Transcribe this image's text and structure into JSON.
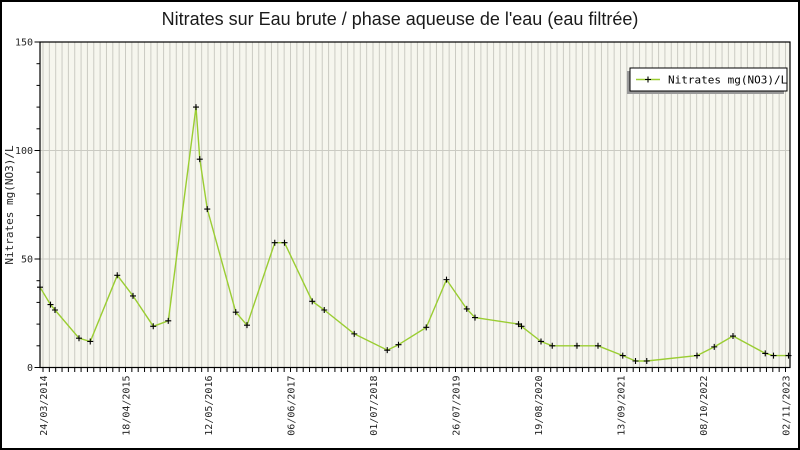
{
  "title": "Nitrates sur Eau brute / phase aqueuse de l'eau (eau filtrée)",
  "legend": {
    "label": "Nitrates mg(NO3)/L",
    "marker_icon": "plus-marker-icon",
    "position": "top-right-inside"
  },
  "colors": {
    "line": "#9acd32",
    "marker": "#000000",
    "plot_background": "#f6f6ee",
    "grid": "#cbcbc3",
    "frame": "#000000",
    "page_background": "#ffffff",
    "legend_shadow": "#999999",
    "legend_background": "#ffffff",
    "text": "#262626"
  },
  "chart_data": {
    "type": "line",
    "title": "Nitrates sur Eau brute / phase aqueuse de l'eau (eau filtrée)",
    "xlabel": "",
    "ylabel": "Nitrates mg(NO3)/L",
    "ylim": [
      0,
      150
    ],
    "y_major_ticks": [
      0,
      50,
      100,
      150
    ],
    "y_minor_step": 10,
    "grid": "horizontal lines at 50 and 100, dense monthly vertical stripes",
    "legend_position": "top-right inside plot",
    "x_tick_labels": [
      "24/03/2014",
      "18/04/2015",
      "12/05/2016",
      "06/06/2017",
      "01/07/2018",
      "26/07/2019",
      "19/08/2020",
      "13/09/2021",
      "08/10/2022",
      "02/11/2023"
    ],
    "x_tick_positions": [
      0.004,
      0.114,
      0.224,
      0.334,
      0.444,
      0.554,
      0.664,
      0.774,
      0.884,
      0.994
    ],
    "x_minor_per_major": 13,
    "series": [
      {
        "name": "Nitrates mg(NO3)/L",
        "color": "#9acd32",
        "marker": "plus",
        "points": [
          [
            0.0,
            37
          ],
          [
            0.014,
            29
          ],
          [
            0.02,
            26.5
          ],
          [
            0.052,
            13.5
          ],
          [
            0.067,
            12
          ],
          [
            0.103,
            42.5
          ],
          [
            0.124,
            33
          ],
          [
            0.151,
            19
          ],
          [
            0.171,
            21.5
          ],
          [
            0.208,
            120
          ],
          [
            0.213,
            96
          ],
          [
            0.223,
            73
          ],
          [
            0.261,
            25.5
          ],
          [
            0.276,
            19.5
          ],
          [
            0.313,
            57.5
          ],
          [
            0.326,
            57.5
          ],
          [
            0.363,
            30.5
          ],
          [
            0.379,
            26.5
          ],
          [
            0.419,
            15.5
          ],
          [
            0.463,
            8
          ],
          [
            0.478,
            10.5
          ],
          [
            0.515,
            18.5
          ],
          [
            0.542,
            40.5
          ],
          [
            0.569,
            27
          ],
          [
            0.58,
            23
          ],
          [
            0.638,
            20
          ],
          [
            0.642,
            19
          ],
          [
            0.668,
            12
          ],
          [
            0.683,
            10
          ],
          [
            0.716,
            10
          ],
          [
            0.744,
            10
          ],
          [
            0.777,
            5.5
          ],
          [
            0.794,
            3
          ],
          [
            0.809,
            3
          ],
          [
            0.876,
            5.5
          ],
          [
            0.899,
            9.5
          ],
          [
            0.924,
            14.5
          ],
          [
            0.967,
            6.5
          ],
          [
            0.978,
            5.5
          ],
          [
            0.998,
            5.5
          ]
        ]
      }
    ]
  }
}
